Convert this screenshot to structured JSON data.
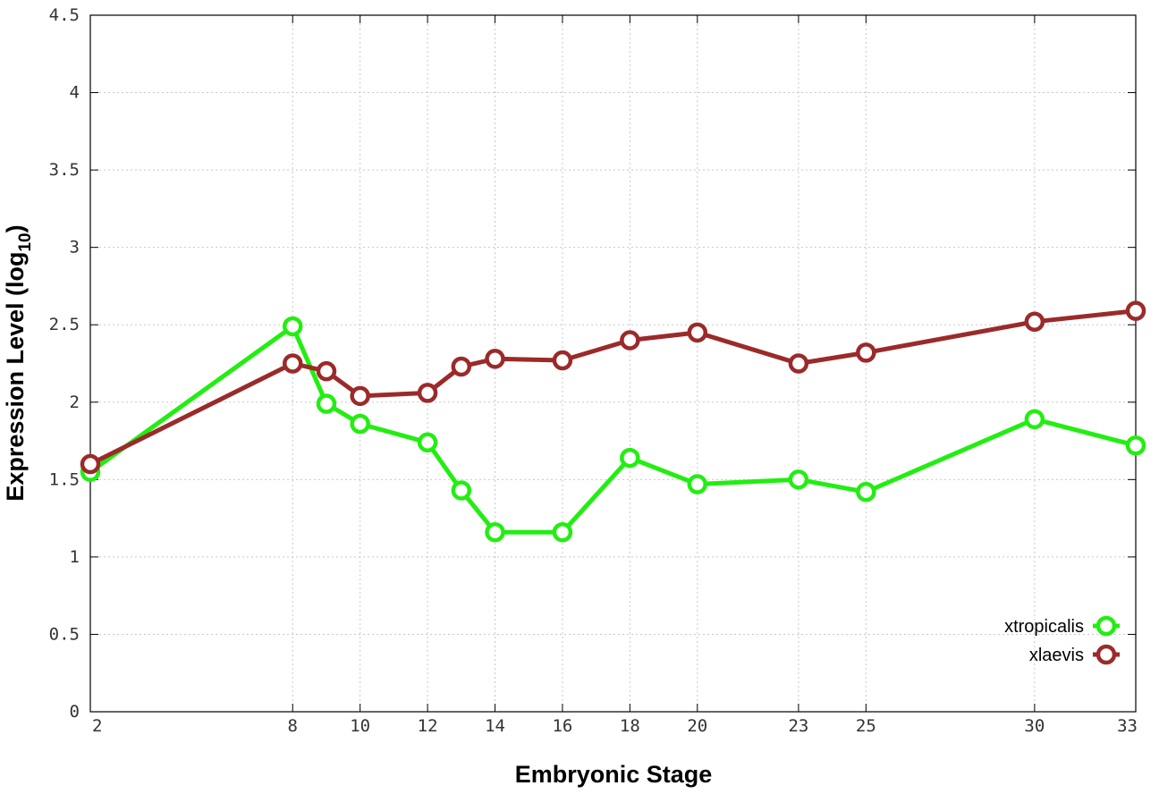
{
  "chart_data": {
    "type": "line",
    "xlabel": "Embryonic Stage",
    "ylabel_main": "Expression Level (log",
    "ylabel_sub": "10",
    "ylabel_close": ")",
    "xlim": [
      2,
      33
    ],
    "ylim": [
      0,
      4.5
    ],
    "x_ticks": [
      2,
      8,
      10,
      12,
      14,
      16,
      18,
      20,
      23,
      25,
      30,
      33
    ],
    "y_ticks": [
      0,
      0.5,
      1,
      1.5,
      2,
      2.5,
      3,
      3.5,
      4,
      4.5
    ],
    "y_tick_labels": [
      "0",
      "0.5",
      "1",
      "1.5",
      "2",
      "2.5",
      "3",
      "3.5",
      "4",
      "4.5"
    ],
    "grid": true,
    "legend_position": "bottom-right",
    "series": [
      {
        "name": "xtropicalis",
        "color": "#22ee11",
        "points": [
          {
            "x": 2,
            "y": 1.55
          },
          {
            "x": 8,
            "y": 2.49
          },
          {
            "x": 9,
            "y": 1.99
          },
          {
            "x": 10,
            "y": 1.86
          },
          {
            "x": 12,
            "y": 1.74
          },
          {
            "x": 13,
            "y": 1.43
          },
          {
            "x": 14,
            "y": 1.16
          },
          {
            "x": 16,
            "y": 1.16
          },
          {
            "x": 18,
            "y": 1.64
          },
          {
            "x": 20,
            "y": 1.47
          },
          {
            "x": 23,
            "y": 1.5
          },
          {
            "x": 25,
            "y": 1.42
          },
          {
            "x": 30,
            "y": 1.89
          },
          {
            "x": 33,
            "y": 1.72
          }
        ]
      },
      {
        "name": "xlaevis",
        "color": "#9b2a2a",
        "points": [
          {
            "x": 2,
            "y": 1.6
          },
          {
            "x": 8,
            "y": 2.25
          },
          {
            "x": 9,
            "y": 2.2
          },
          {
            "x": 10,
            "y": 2.04
          },
          {
            "x": 12,
            "y": 2.06
          },
          {
            "x": 13,
            "y": 2.23
          },
          {
            "x": 14,
            "y": 2.28
          },
          {
            "x": 16,
            "y": 2.27
          },
          {
            "x": 18,
            "y": 2.4
          },
          {
            "x": 20,
            "y": 2.45
          },
          {
            "x": 23,
            "y": 2.25
          },
          {
            "x": 25,
            "y": 2.32
          },
          {
            "x": 30,
            "y": 2.52
          },
          {
            "x": 33,
            "y": 2.59
          }
        ]
      }
    ]
  }
}
